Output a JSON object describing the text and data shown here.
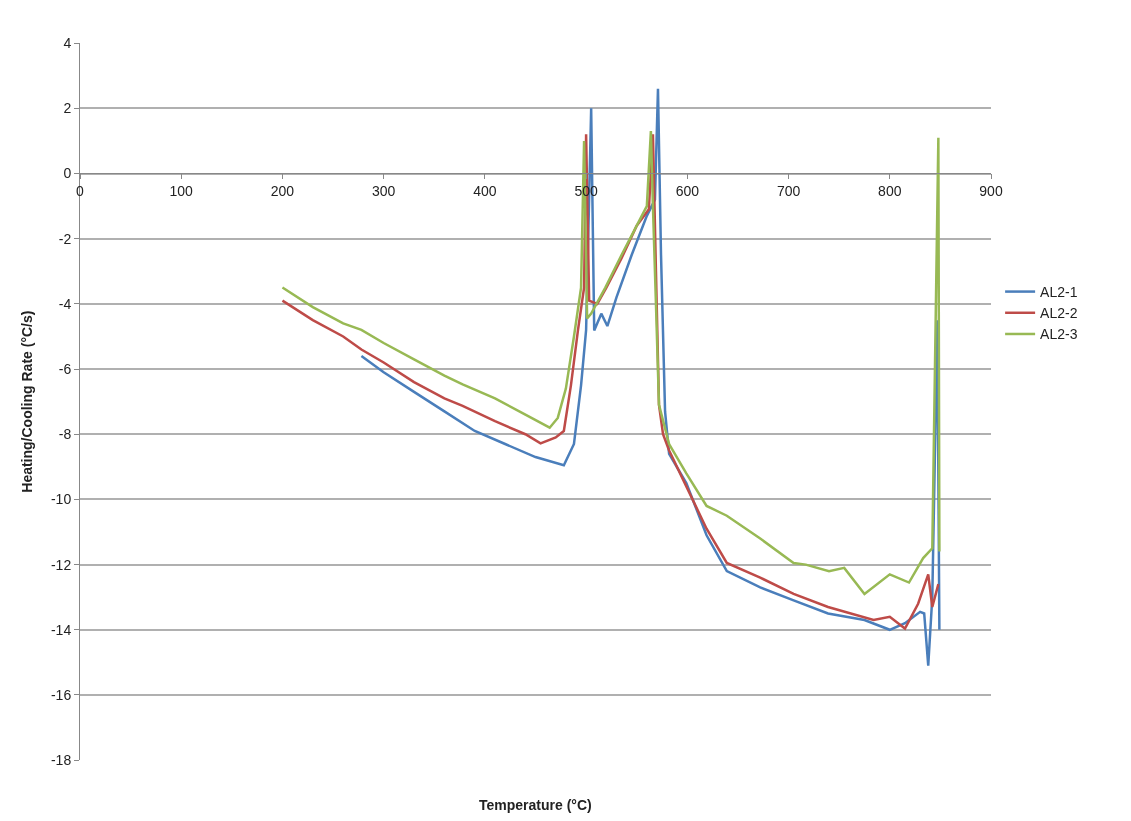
{
  "chart_data": {
    "type": "line",
    "xlabel": "Temperature (°C)",
    "ylabel": "Heating/Cooling Rate (°C/s)",
    "xlim": [
      0,
      900
    ],
    "xticks": [
      0,
      100,
      200,
      300,
      400,
      500,
      600,
      700,
      800,
      900
    ],
    "ylim": [
      -18,
      4
    ],
    "yticks": [
      -18,
      -16,
      -14,
      -12,
      -10,
      -8,
      -6,
      -4,
      -2,
      0,
      2,
      4
    ],
    "grid": "y",
    "legend": "right",
    "marker": "none",
    "line_style": "solid",
    "series": [
      {
        "name": "AL2-1",
        "color": "#4a7ebb",
        "x": [
          278,
          300,
          330,
          360,
          390,
          420,
          450,
          478,
          488,
          495,
          500,
          505,
          508,
          515,
          521,
          530,
          545,
          560,
          568,
          571,
          574,
          578,
          582,
          599,
          619,
          639,
          672,
          705,
          739,
          775,
          800,
          815,
          830,
          834,
          838,
          842,
          847,
          849
        ],
        "values": [
          -5.6,
          -6.1,
          -6.7,
          -7.3,
          -7.9,
          -8.3,
          -8.7,
          -8.95,
          -8.3,
          -6.5,
          -4.8,
          2.0,
          -4.82,
          -4.3,
          -4.68,
          -3.8,
          -2.5,
          -1.3,
          -0.8,
          2.6,
          -2.5,
          -7.3,
          -8.6,
          -9.5,
          -11.1,
          -12.2,
          -12.7,
          -13.1,
          -13.5,
          -13.7,
          -14.0,
          -13.8,
          -13.45,
          -13.5,
          -15.1,
          -13.0,
          -4.5,
          -14.0
        ]
      },
      {
        "name": "AL2-2",
        "color": "#be4b48",
        "x": [
          200,
          230,
          260,
          278,
          300,
          330,
          360,
          378,
          410,
          440,
          455,
          470,
          478,
          485,
          492,
          498,
          500,
          503,
          511,
          520,
          535,
          550,
          562,
          566,
          569,
          572,
          576,
          582,
          599,
          619,
          639,
          672,
          705,
          739,
          784,
          800,
          815,
          828,
          838,
          842,
          848
        ],
        "values": [
          -3.9,
          -4.5,
          -5.0,
          -5.4,
          -5.8,
          -6.4,
          -6.9,
          -7.13,
          -7.6,
          -8.0,
          -8.28,
          -8.1,
          -7.9,
          -6.5,
          -4.8,
          -3.5,
          1.2,
          -3.9,
          -4.0,
          -3.5,
          -2.6,
          -1.6,
          -1.1,
          1.2,
          -3.0,
          -7.1,
          -8.0,
          -8.5,
          -9.6,
          -10.9,
          -11.95,
          -12.4,
          -12.9,
          -13.3,
          -13.7,
          -13.6,
          -13.96,
          -13.2,
          -12.3,
          -13.3,
          -12.6
        ]
      },
      {
        "name": "AL2-3",
        "color": "#98b954",
        "x": [
          200,
          230,
          260,
          278,
          300,
          330,
          360,
          378,
          410,
          440,
          464,
          472,
          480,
          488,
          495,
          498,
          501,
          505,
          519,
          535,
          550,
          560,
          564,
          566,
          569,
          572,
          582,
          599,
          619,
          639,
          672,
          705,
          717,
          740,
          755,
          775,
          800,
          819,
          833,
          842,
          848,
          849
        ],
        "values": [
          -3.5,
          -4.1,
          -4.6,
          -4.8,
          -5.2,
          -5.7,
          -6.2,
          -6.47,
          -6.9,
          -7.4,
          -7.8,
          -7.5,
          -6.6,
          -5.0,
          -3.5,
          1.0,
          -4.45,
          -4.3,
          -3.5,
          -2.5,
          -1.6,
          -1.0,
          1.3,
          -1.0,
          -4.0,
          -7.1,
          -8.3,
          -9.2,
          -10.2,
          -10.5,
          -11.2,
          -11.95,
          -12.0,
          -12.2,
          -12.1,
          -12.9,
          -12.3,
          -12.55,
          -11.8,
          -11.5,
          1.1,
          -11.6
        ]
      }
    ]
  }
}
